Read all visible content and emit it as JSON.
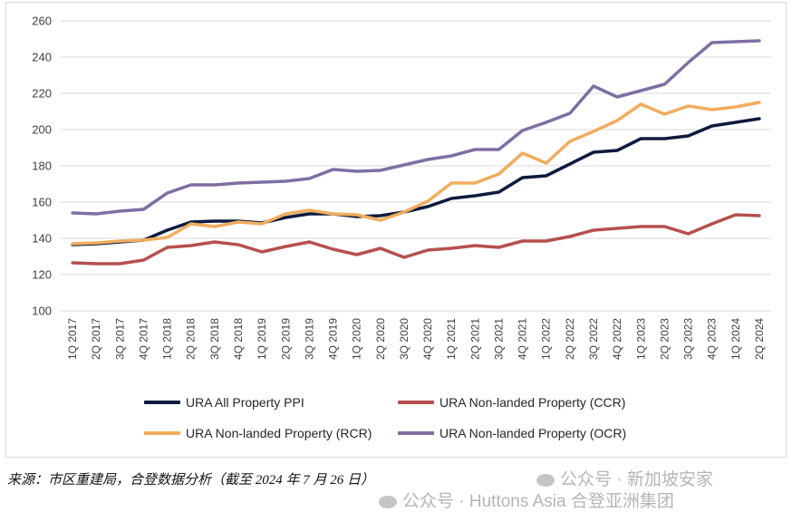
{
  "chart_data": {
    "type": "line",
    "categories": [
      "1Q 2017",
      "2Q 2017",
      "3Q 2017",
      "4Q 2017",
      "1Q 2018",
      "2Q 2018",
      "3Q 2018",
      "4Q 2018",
      "1Q 2019",
      "2Q 2019",
      "3Q 2019",
      "4Q 2019",
      "1Q 2020",
      "2Q 2020",
      "3Q 2020",
      "4Q 2020",
      "1Q 2021",
      "2Q 2021",
      "3Q 2021",
      "4Q 2021",
      "1Q 2022",
      "2Q 2022",
      "3Q 2022",
      "4Q 2022",
      "1Q 2023",
      "2Q 2023",
      "3Q 2023",
      "4Q 2023",
      "1Q 2024",
      "2Q 2024"
    ],
    "ylim": [
      100,
      260
    ],
    "yticks": [
      100,
      120,
      140,
      160,
      180,
      200,
      220,
      240,
      260
    ],
    "grid": true,
    "legend_position": "bottom",
    "series": [
      {
        "name": "URA All Property PPI",
        "color": "#0d1b3e",
        "values": [
          136.5,
          137,
          138,
          139,
          144.5,
          149,
          149.5,
          149.5,
          148.5,
          151.5,
          153.5,
          153.5,
          152,
          152.5,
          154.5,
          157.5,
          162,
          163.5,
          165.5,
          173.5,
          174.5,
          181,
          187.5,
          188.5,
          195,
          195,
          196.5,
          202,
          204,
          206
        ]
      },
      {
        "name": "URA Non-landed Property (CCR)",
        "color": "#b5504e",
        "values": [
          126.5,
          126,
          126,
          128,
          135,
          136,
          138,
          136.5,
          132.5,
          135.5,
          138,
          134,
          131,
          134.5,
          129.5,
          133.5,
          134.5,
          136,
          135,
          138.5,
          138.5,
          141,
          144.5,
          145.5,
          146.5,
          146.5,
          142.5,
          148,
          153,
          152.5
        ]
      },
      {
        "name": "URA Non-landed Property (RCR)",
        "color": "#f0ad5e",
        "values": [
          137,
          137.5,
          138.5,
          139,
          140.5,
          148,
          146.5,
          149,
          148,
          153.5,
          155.5,
          153.5,
          153,
          150,
          154.5,
          160.5,
          170.5,
          170.5,
          175.5,
          187,
          181.5,
          193.5,
          199,
          205,
          214,
          208.5,
          213,
          211,
          212.5,
          215
        ]
      },
      {
        "name": "URA Non-landed Property (OCR)",
        "color": "#7f6fa3",
        "values": [
          154,
          153.5,
          155,
          156,
          165,
          169.5,
          169.5,
          170.5,
          171,
          171.5,
          173,
          178,
          177,
          177.5,
          180.5,
          183.5,
          185.5,
          189,
          189,
          199.5,
          204,
          209,
          224,
          218,
          221.5,
          225,
          237,
          248,
          248.5,
          249
        ]
      }
    ]
  },
  "source_note": "来源：市区重建局，合登数据分析（截至 2024 年 7 月 26 日）",
  "watermark_1": "公众号 · 新加坡安家",
  "watermark_2": "公众号 · Huttons Asia 合登亚洲集团"
}
